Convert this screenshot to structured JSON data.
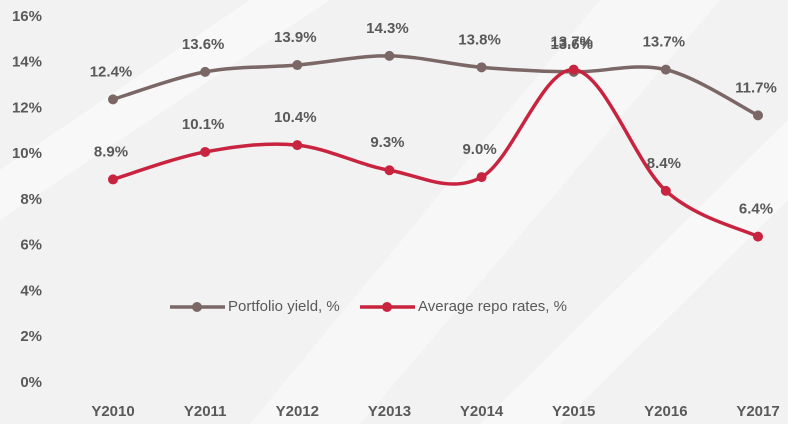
{
  "chart_data": {
    "type": "line",
    "categories": [
      "Y2010",
      "Y2011",
      "Y2012",
      "Y2013",
      "Y2014",
      "Y2015",
      "Y2016",
      "Y2017"
    ],
    "series": [
      {
        "name": "Portfolio yield, %",
        "color": "#7b6766",
        "values": [
          12.4,
          13.6,
          13.9,
          14.3,
          13.8,
          13.6,
          13.7,
          11.7
        ],
        "value_labels": [
          "12.4%",
          "13.6%",
          "13.9%",
          "14.3%",
          "13.8%",
          "13.6%",
          "13.7%",
          "11.7%"
        ]
      },
      {
        "name": "Average repo rates, %",
        "color": "#c8243f",
        "values": [
          8.9,
          10.1,
          10.4,
          9.3,
          9.0,
          13.7,
          8.4,
          6.4
        ],
        "value_labels": [
          "8.9%",
          "10.1%",
          "10.4%",
          "9.3%",
          "9.0%",
          "13.7%",
          "8.4%",
          "6.4%"
        ]
      }
    ],
    "ylim": [
      0,
      16
    ],
    "yticks": [
      {
        "value": 0,
        "label": "0%"
      },
      {
        "value": 2,
        "label": "2%"
      },
      {
        "value": 4,
        "label": "4%"
      },
      {
        "value": 6,
        "label": "6%"
      },
      {
        "value": 8,
        "label": "8%"
      },
      {
        "value": 10,
        "label": "10%"
      },
      {
        "value": 12,
        "label": "12%"
      },
      {
        "value": 14,
        "label": "14%"
      },
      {
        "value": 16,
        "label": "16%"
      }
    ],
    "grid": false,
    "legend": "center"
  }
}
